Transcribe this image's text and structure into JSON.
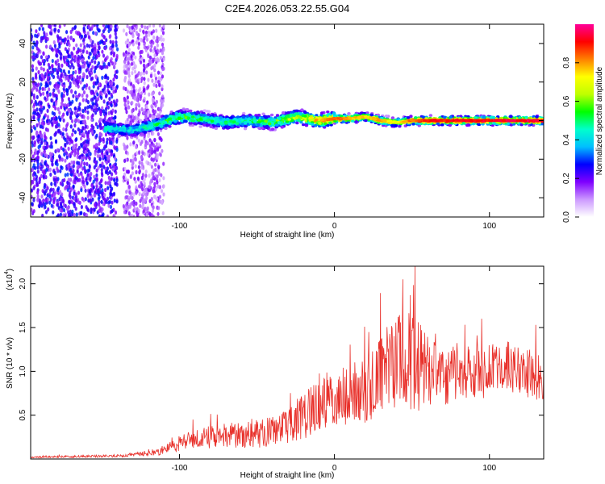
{
  "title": "C2E4.2026.053.22.55.G04",
  "chart_data": [
    {
      "type": "heatmap",
      "name": "spectrogram",
      "xlabel": "Height of straight line (km)",
      "ylabel": "Frequency (Hz)",
      "xlim": [
        -196,
        135
      ],
      "ylim": [
        -50,
        50
      ],
      "x_tick_labels": [
        "-100",
        "0",
        "100"
      ],
      "x_ticks": [
        -100,
        0,
        100
      ],
      "y_tick_labels": [
        "40",
        "20",
        "0",
        "-20",
        "-40"
      ],
      "y_ticks": [
        40,
        20,
        0,
        -20,
        -40
      ],
      "colorbar": {
        "label": "Normalized spectral amplitude",
        "range": [
          0,
          1
        ],
        "tick_labels": [
          "0.0",
          "0.2",
          "0.4",
          "0.6",
          "0.8"
        ],
        "ticks": [
          0.0,
          0.2,
          0.4,
          0.6,
          0.8
        ],
        "colors": [
          "#ffffff",
          "#cc99ff",
          "#7f00ff",
          "#0000ff",
          "#00bfff",
          "#00ffcc",
          "#00ff00",
          "#bfff00",
          "#ffff00",
          "#ff8000",
          "#ff0000",
          "#ff0099"
        ]
      },
      "ridge": {
        "description_points_x": [
          -145,
          -130,
          -115,
          -100,
          -85,
          -70,
          -55,
          -40,
          -25,
          -10,
          0,
          10,
          20,
          30,
          40,
          50,
          60,
          80,
          100,
          120,
          135
        ],
        "center_freq": [
          -4,
          -5,
          -2,
          2,
          1,
          -1,
          0,
          -1,
          2,
          0,
          1,
          1,
          2,
          0,
          -1,
          0,
          0,
          0,
          0,
          0,
          0
        ],
        "peak_amplitude": [
          0.5,
          0.45,
          0.55,
          0.6,
          0.55,
          0.5,
          0.55,
          0.6,
          0.7,
          0.8,
          0.85,
          0.8,
          0.75,
          0.8,
          0.7,
          0.85,
          0.9,
          0.92,
          0.93,
          0.95,
          0.95
        ]
      },
      "noise_region_x": [
        -196,
        -110
      ]
    },
    {
      "type": "line",
      "name": "snr",
      "xlabel": "Height of straight line (km)",
      "ylabel": "SNR (10 * v/v)",
      "scale_label": "(x10",
      "scale_exponent": "4",
      "xlim": [
        -196,
        135
      ],
      "ylim": [
        0,
        22000
      ],
      "x_tick_labels": [
        "-100",
        "0",
        "100"
      ],
      "x_ticks": [
        -100,
        0,
        100
      ],
      "y_tick_labels": [
        "0.5",
        "1.0",
        "1.5",
        "2.0"
      ],
      "y_ticks": [
        5000,
        10000,
        15000,
        20000
      ],
      "series": [
        {
          "name": "SNR",
          "color": "#e8302a",
          "x": [
            -196,
            -180,
            -160,
            -140,
            -130,
            -120,
            -110,
            -100,
            -90,
            -80,
            -70,
            -60,
            -50,
            -40,
            -30,
            -20,
            -10,
            0,
            10,
            20,
            30,
            35,
            40,
            45,
            50,
            52,
            55,
            60,
            70,
            80,
            90,
            100,
            110,
            120,
            130,
            135
          ],
          "values": [
            200,
            250,
            300,
            350,
            500,
            700,
            900,
            1800,
            2200,
            2500,
            2800,
            2600,
            2900,
            3200,
            3500,
            5000,
            6500,
            7000,
            7500,
            8000,
            9500,
            10500,
            11000,
            12000,
            11500,
            11000,
            10500,
            10000,
            9500,
            9500,
            10000,
            10000,
            10500,
            10000,
            9500,
            9500
          ],
          "noise_amp": [
            80,
            100,
            120,
            150,
            200,
            300,
            500,
            900,
            1000,
            1200,
            1400,
            1300,
            1500,
            1700,
            2000,
            2500,
            3000,
            3000,
            3200,
            3500,
            4000,
            4500,
            5000,
            5500,
            5500,
            5500,
            4500,
            4000,
            3200,
            3000,
            2800,
            2800,
            2800,
            2600,
            2500,
            2500
          ],
          "peaks": [
            [
              44,
              20500
            ],
            [
              49,
              18700
            ],
            [
              52,
              22000
            ],
            [
              95,
              16000
            ],
            [
              130,
              15300
            ]
          ]
        }
      ]
    }
  ]
}
